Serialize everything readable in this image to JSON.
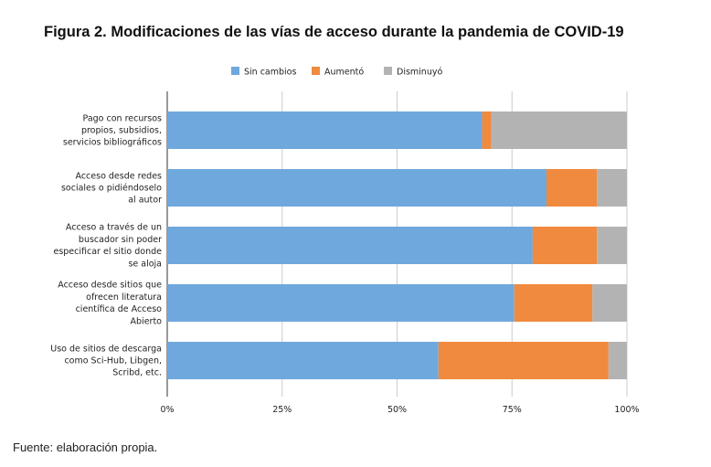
{
  "figure": {
    "title": "Figura 2. Modificaciones de las vías de acceso durante la pandemia de COVID-19",
    "source": "Fuente: elaboración propia."
  },
  "chart_data": {
    "type": "bar",
    "orientation": "horizontal",
    "stacked": "percent",
    "categories": [
      [
        "Pago con recursos",
        "propios, subsidios,",
        "servicios bibliográficos"
      ],
      [
        "Acceso desde redes",
        "sociales o pidiéndoselo",
        "al autor"
      ],
      [
        "Acceso a través de un",
        "buscador sin poder",
        "especificar el sitio donde",
        "se aloja"
      ],
      [
        "Acceso desde sitios que",
        "ofrecen literatura",
        "científica de Acceso",
        "Abierto"
      ],
      [
        "Uso de sitios de descarga",
        "como Sci-Hub, Libgen,",
        "Scribd, etc."
      ]
    ],
    "series": [
      {
        "name": "Sin cambios",
        "color": "#6fa8dc",
        "values": [
          68.5,
          82.5,
          79.5,
          75.5,
          59
        ]
      },
      {
        "name": "Aumentó",
        "color": "#f08a3e",
        "values": [
          2,
          11,
          14,
          17,
          37
        ]
      },
      {
        "name": "Disminuyó",
        "color": "#b3b3b3",
        "values": [
          29.5,
          6.5,
          6.5,
          7.5,
          4
        ]
      }
    ],
    "xlim": [
      0,
      100
    ],
    "xticks": [
      "0%",
      "25%",
      "50%",
      "75%",
      "100%"
    ],
    "xtick_values": [
      0,
      25,
      50,
      75,
      100
    ],
    "legend_position": "top",
    "grid": true
  }
}
